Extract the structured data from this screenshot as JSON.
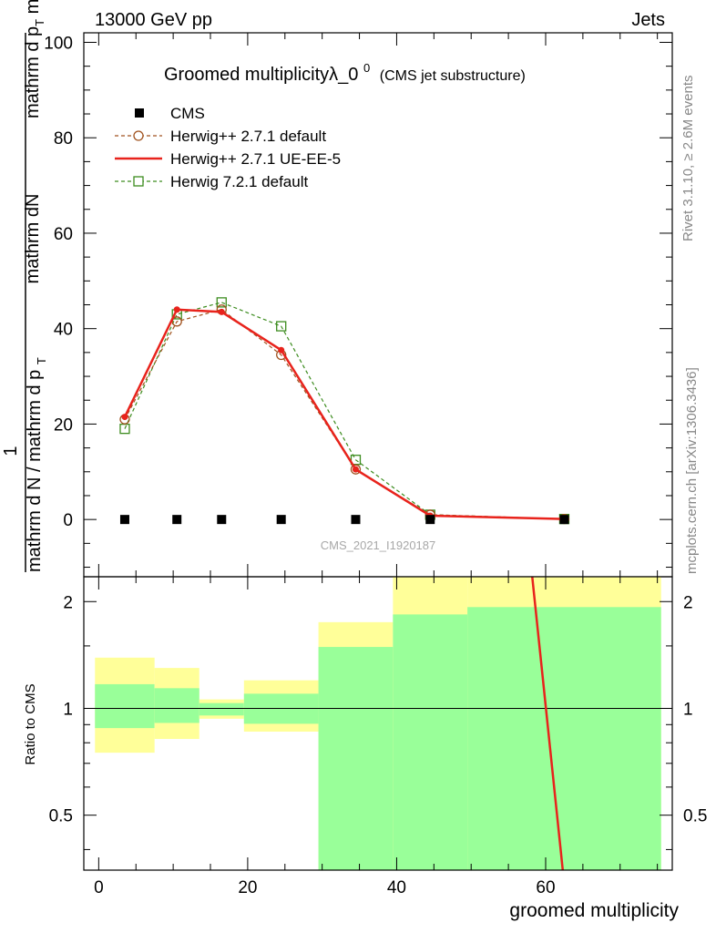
{
  "header": {
    "left": "13000 GeV pp",
    "right": "Jets"
  },
  "side_labels": {
    "top": "Rivet 3.1.10, ≥ 2.6M events",
    "bottom": "mcplots.cern.ch [arXiv:1306.3436]"
  },
  "title": {
    "main": "Groomed multiplicityλ_0",
    "sup": "0",
    "sub": "(CMS jet substructure)"
  },
  "watermark": "CMS_2021_I1920187",
  "y_label_main": {
    "numerator_top": "mathrm dN",
    "numerator_sub": "mathrm d p",
    "numerator_subT": "T",
    "numerator_tail": " mathrm d lambda",
    "one": "1",
    "denominator": "mathrm d N / mathrm d p",
    "denominator_T": "T"
  },
  "colors": {
    "cms": "#000000",
    "herwig_default": "#a0521e",
    "herwig_ue": "#e8231c",
    "herwig7": "#3c8c1e",
    "band_outer": "#ffff99",
    "band_inner": "#99ff99"
  },
  "chart_data": [
    {
      "type": "line",
      "panel": "main",
      "xlim": [
        -2,
        77
      ],
      "ylim": [
        -12,
        102
      ],
      "yticks": [
        0,
        20,
        40,
        60,
        80,
        100
      ],
      "legend_position": "top-left",
      "series": [
        {
          "name": "CMS",
          "style": "marker-square",
          "x": [
            3.5,
            10.5,
            16.5,
            24.5,
            34.5,
            44.5,
            62.5
          ],
          "y": [
            0,
            0,
            0,
            0,
            0,
            0,
            0
          ]
        },
        {
          "name": "Herwig++ 2.7.1 default",
          "style": "dashed-circle",
          "x": [
            3.5,
            10.5,
            16.5,
            24.5,
            34.5,
            44.5,
            62.5
          ],
          "y": [
            21,
            41.5,
            44,
            34.5,
            10.5,
            1,
            0.1
          ]
        },
        {
          "name": "Herwig++ 2.7.1 UE-EE-5",
          "style": "solid",
          "x": [
            3.5,
            10.5,
            16.5,
            24.5,
            34.5,
            44.5,
            62.5
          ],
          "y": [
            21.5,
            44,
            43.5,
            35.5,
            10.5,
            0.8,
            0.1
          ]
        },
        {
          "name": "Herwig 7.2.1 default",
          "style": "dashed-square",
          "x": [
            3.5,
            10.5,
            16.5,
            24.5,
            34.5,
            44.5,
            62.5
          ],
          "y": [
            19,
            43,
            45.5,
            40.5,
            12.5,
            1,
            0.1
          ]
        }
      ]
    },
    {
      "type": "area",
      "panel": "ratio",
      "ylabel": "Ratio to CMS",
      "xlabel": "groomed multiplicity",
      "xlim": [
        -2,
        77
      ],
      "ylim": [
        0.35,
        2.35
      ],
      "xticks": [
        0,
        20,
        40,
        60
      ],
      "yticks": [
        0.5,
        1,
        2
      ],
      "reference": 1,
      "bins": [
        {
          "lo": -0.5,
          "hi": 7.5,
          "outer": [
            0.75,
            1.39
          ],
          "inner": [
            0.88,
            1.17
          ]
        },
        {
          "lo": 7.5,
          "hi": 13.5,
          "outer": [
            0.82,
            1.3
          ],
          "inner": [
            0.91,
            1.14
          ]
        },
        {
          "lo": 13.5,
          "hi": 19.5,
          "outer": [
            0.935,
            1.06
          ],
          "inner": [
            0.955,
            1.035
          ]
        },
        {
          "lo": 19.5,
          "hi": 29.5,
          "outer": [
            0.86,
            1.2
          ],
          "inner": [
            0.905,
            1.1
          ]
        },
        {
          "lo": 29.5,
          "hi": 39.5,
          "outer": [
            0.35,
            1.75
          ],
          "inner": [
            0.35,
            1.49
          ]
        },
        {
          "lo": 39.5,
          "hi": 49.5,
          "outer": [
            0.35,
            2.35
          ],
          "inner": [
            0.35,
            1.84
          ]
        },
        {
          "lo": 49.5,
          "hi": 75.5,
          "outer": [
            0.35,
            2.35
          ],
          "inner": [
            0.35,
            1.93
          ]
        }
      ],
      "series": [
        {
          "name": "Herwig++ 2.7.1 UE-EE-5",
          "x": [
            58.2,
            62.3
          ],
          "y": [
            2.35,
            0.35
          ]
        }
      ]
    }
  ]
}
